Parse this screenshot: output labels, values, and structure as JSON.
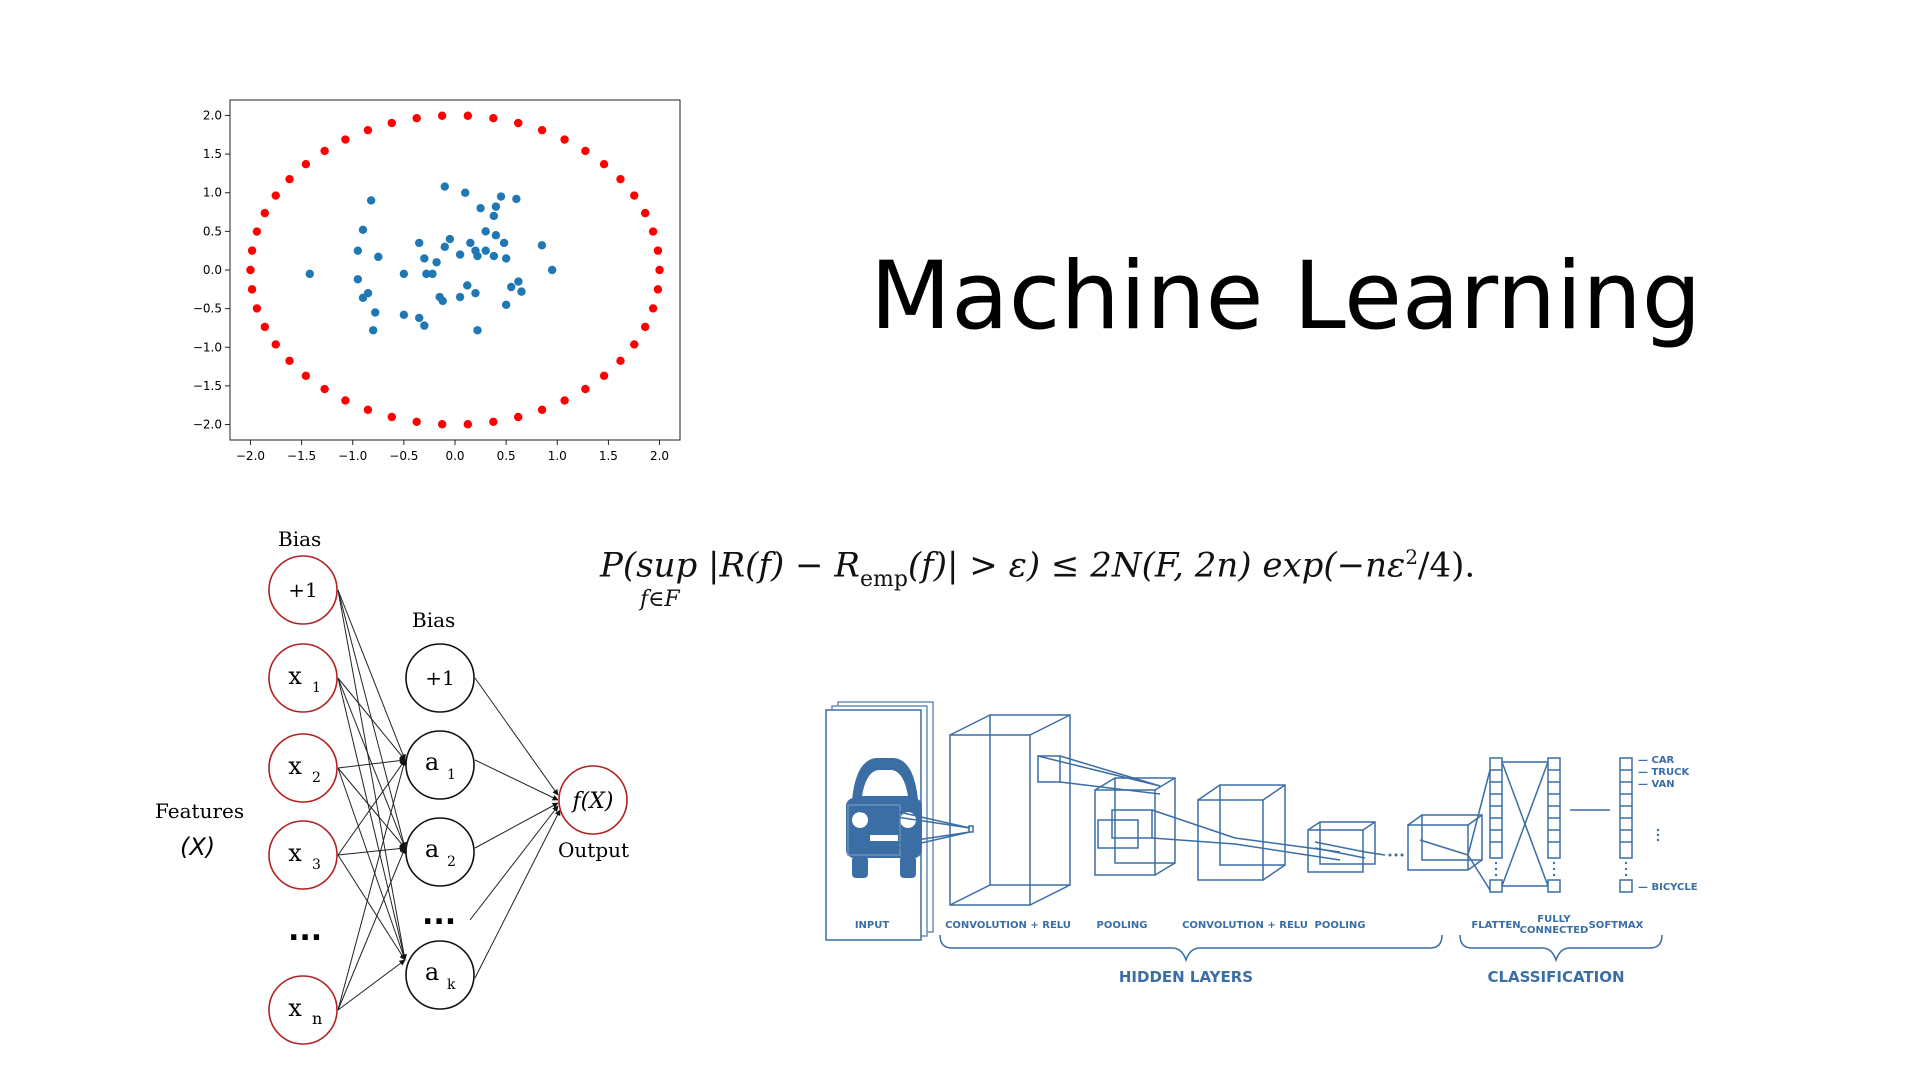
{
  "title": "Machine Learning",
  "formula": {
    "lhs": "P(sup |R(f) − R",
    "emp": "emp",
    "mid": "(f)| > ε) ≤ 2N(F, 2n) exp(−nε",
    "sq": "2",
    "end": "/4).",
    "under": "f∈F"
  },
  "chart_data": {
    "type": "scatter",
    "xlim": [
      -2.2,
      2.2
    ],
    "ylim": [
      -2.2,
      2.2
    ],
    "xticks": [
      "−2.0",
      "−1.5",
      "−1.0",
      "−0.5",
      "0.0",
      "0.5",
      "1.0",
      "1.5",
      "2.0"
    ],
    "yticks": [
      "2.0",
      "1.5",
      "1.0",
      "0.5",
      "0.0",
      "−0.5",
      "−1.0",
      "−1.5",
      "−2.0"
    ],
    "grid": false,
    "outer_color": "#ff0000",
    "inner_color": "#1f77b4",
    "outer_radius": 2.0,
    "outer_count": 50,
    "inner_points": [
      [
        -0.82,
        0.9
      ],
      [
        -0.9,
        0.52
      ],
      [
        -0.95,
        0.25
      ],
      [
        -0.75,
        0.17
      ],
      [
        -0.95,
        -0.12
      ],
      [
        -0.85,
        -0.3
      ],
      [
        -0.9,
        -0.36
      ],
      [
        -0.78,
        -0.55
      ],
      [
        -0.8,
        -0.78
      ],
      [
        -1.42,
        -0.05
      ],
      [
        -0.5,
        -0.05
      ],
      [
        -0.35,
        0.35
      ],
      [
        -0.3,
        0.15
      ],
      [
        -0.28,
        -0.05
      ],
      [
        -0.22,
        -0.05
      ],
      [
        -0.15,
        -0.35
      ],
      [
        -0.12,
        -0.4
      ],
      [
        -0.35,
        -0.62
      ],
      [
        -0.3,
        -0.72
      ],
      [
        -0.5,
        -0.58
      ],
      [
        -0.1,
        0.3
      ],
      [
        -0.05,
        0.4
      ],
      [
        0.05,
        0.2
      ],
      [
        0.15,
        0.35
      ],
      [
        0.2,
        0.25
      ],
      [
        0.22,
        0.18
      ],
      [
        0.3,
        0.25
      ],
      [
        0.38,
        0.18
      ],
      [
        0.5,
        0.15
      ],
      [
        0.4,
        0.45
      ],
      [
        0.48,
        0.35
      ],
      [
        0.3,
        0.5
      ],
      [
        0.25,
        0.8
      ],
      [
        0.4,
        0.82
      ],
      [
        0.45,
        0.95
      ],
      [
        0.6,
        0.92
      ],
      [
        0.38,
        0.7
      ],
      [
        0.1,
        1.0
      ],
      [
        -0.1,
        1.08
      ],
      [
        0.05,
        -0.35
      ],
      [
        0.2,
        -0.3
      ],
      [
        0.22,
        -0.78
      ],
      [
        0.5,
        -0.45
      ],
      [
        0.55,
        -0.22
      ],
      [
        0.62,
        -0.15
      ],
      [
        0.65,
        -0.28
      ],
      [
        0.85,
        0.32
      ],
      [
        0.95,
        0.0
      ],
      [
        0.12,
        -0.2
      ],
      [
        -0.18,
        0.1
      ]
    ]
  },
  "nn": {
    "bias1": "Bias",
    "bias2": "Bias",
    "plus_one": "+1",
    "x1": "x",
    "x1_sub": "1",
    "x2": "x",
    "x2_sub": "2",
    "x3": "x",
    "x3_sub": "3",
    "xn": "x",
    "xn_sub": "n",
    "a1": "a",
    "a1_sub": "1",
    "a2": "a",
    "a2_sub": "2",
    "ak": "a",
    "ak_sub": "k",
    "dots": "...",
    "features": "Features",
    "features_var": "(X)",
    "output_node": "f(X)",
    "output": "Output"
  },
  "cnn": {
    "input": "INPUT",
    "conv1": "CONVOLUTION + RELU",
    "pool1": "POOLING",
    "conv2": "CONVOLUTION + RELU",
    "pool2": "POOLING",
    "flatten": "FLATTEN",
    "fully": "FULLY",
    "connected": "CONNECTED",
    "softmax": "SOFTMAX",
    "hidden": "HIDDEN LAYERS",
    "classification": "CLASSIFICATION",
    "car": "— CAR",
    "truck": "— TRUCK",
    "van": "— VAN",
    "bicycle": "— BICYCLE",
    "color": "#3a6ea5"
  }
}
